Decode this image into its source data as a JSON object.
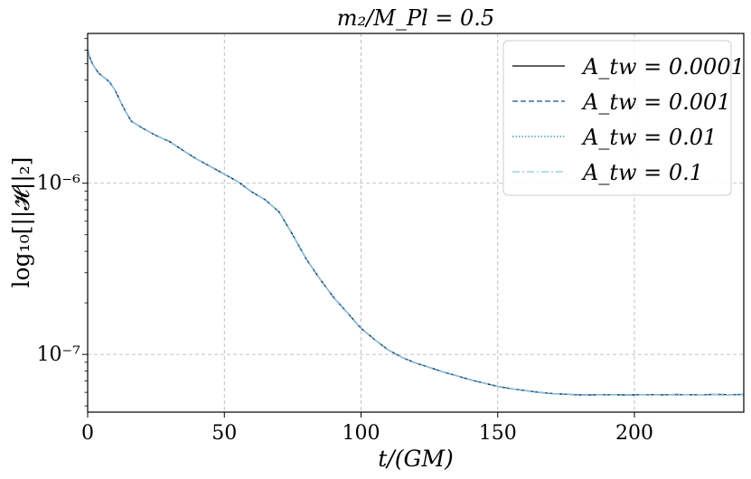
{
  "chart_data": {
    "type": "line",
    "title": "m₂/M_Pl = 0.5",
    "xlabel": "t/(GM)",
    "ylabel": "log₁₀[||𝓗||₂]",
    "xlim": [
      0,
      240
    ],
    "ylim": [
      4.6e-08,
      7.5e-06
    ],
    "yscale": "log",
    "grid": true,
    "legend_position": "top-right",
    "x_ticks": [
      0,
      50,
      100,
      150,
      200
    ],
    "x_tick_labels": [
      "0",
      "50",
      "100",
      "150",
      "200"
    ],
    "y_ticks": [
      1e-07,
      1e-06
    ],
    "y_tick_labels": [
      "10⁻⁷",
      "10⁻⁶"
    ],
    "x": [
      0,
      1,
      2,
      4,
      6,
      8,
      10,
      12,
      14,
      16,
      18,
      20,
      25,
      30,
      35,
      40,
      45,
      50,
      55,
      60,
      65,
      70,
      75,
      80,
      85,
      90,
      95,
      100,
      105,
      110,
      115,
      120,
      125,
      130,
      135,
      140,
      145,
      150,
      155,
      160,
      165,
      170,
      175,
      180,
      185,
      190,
      195,
      200,
      205,
      210,
      215,
      220,
      225,
      230,
      235,
      240
    ],
    "series": [
      {
        "name": "A_tw = 0.0001",
        "color": "#000000",
        "dash": "solid",
        "values": [
          6e-06,
          5.3e-06,
          4.9e-06,
          4.4e-06,
          4.15e-06,
          3.9e-06,
          3.5e-06,
          3e-06,
          2.6e-06,
          2.3e-06,
          2.2e-06,
          2.1e-06,
          1.9e-06,
          1.75e-06,
          1.55e-06,
          1.38e-06,
          1.25e-06,
          1.13e-06,
          1.02e-06,
          8.9e-07,
          8e-07,
          6.8e-07,
          5e-07,
          3.6e-07,
          2.75e-07,
          2.15e-07,
          1.75e-07,
          1.42e-07,
          1.22e-07,
          1.06e-07,
          9.6e-08,
          8.9e-08,
          8.4e-08,
          7.9e-08,
          7.5e-08,
          7.1e-08,
          6.8e-08,
          6.5e-08,
          6.3e-08,
          6.15e-08,
          6e-08,
          5.9e-08,
          5.85e-08,
          5.8e-08,
          5.8e-08,
          5.82e-08,
          5.8e-08,
          5.8e-08,
          5.82e-08,
          5.8e-08,
          5.83e-08,
          5.81e-08,
          5.82e-08,
          5.83e-08,
          5.82e-08,
          5.83e-08
        ]
      },
      {
        "name": "A_tw = 0.001",
        "color": "#1f4e96",
        "dash": "dashed",
        "values": [
          6e-06,
          5.3e-06,
          4.9e-06,
          4.4e-06,
          4.15e-06,
          3.9e-06,
          3.5e-06,
          3e-06,
          2.6e-06,
          2.3e-06,
          2.2e-06,
          2.1e-06,
          1.9e-06,
          1.75e-06,
          1.55e-06,
          1.38e-06,
          1.25e-06,
          1.13e-06,
          1.02e-06,
          8.9e-07,
          8e-07,
          6.8e-07,
          5e-07,
          3.6e-07,
          2.75e-07,
          2.15e-07,
          1.75e-07,
          1.42e-07,
          1.22e-07,
          1.06e-07,
          9.6e-08,
          8.9e-08,
          8.4e-08,
          7.9e-08,
          7.5e-08,
          7.1e-08,
          6.8e-08,
          6.5e-08,
          6.3e-08,
          6.15e-08,
          6e-08,
          5.9e-08,
          5.85e-08,
          5.8e-08,
          5.8e-08,
          5.82e-08,
          5.8e-08,
          5.8e-08,
          5.82e-08,
          5.8e-08,
          5.83e-08,
          5.81e-08,
          5.82e-08,
          5.83e-08,
          5.82e-08,
          5.83e-08
        ]
      },
      {
        "name": "A_tw = 0.01",
        "color": "#1f88b8",
        "dash": "dotted",
        "values": [
          6e-06,
          5.3e-06,
          4.9e-06,
          4.4e-06,
          4.15e-06,
          3.9e-06,
          3.5e-06,
          3e-06,
          2.6e-06,
          2.3e-06,
          2.2e-06,
          2.1e-06,
          1.9e-06,
          1.75e-06,
          1.55e-06,
          1.38e-06,
          1.25e-06,
          1.13e-06,
          1.02e-06,
          8.9e-07,
          8e-07,
          6.8e-07,
          5e-07,
          3.6e-07,
          2.75e-07,
          2.15e-07,
          1.75e-07,
          1.42e-07,
          1.22e-07,
          1.06e-07,
          9.6e-08,
          8.9e-08,
          8.4e-08,
          7.9e-08,
          7.5e-08,
          7.1e-08,
          6.8e-08,
          6.5e-08,
          6.3e-08,
          6.15e-08,
          6e-08,
          5.9e-08,
          5.85e-08,
          5.8e-08,
          5.8e-08,
          5.82e-08,
          5.8e-08,
          5.8e-08,
          5.82e-08,
          5.8e-08,
          5.83e-08,
          5.81e-08,
          5.82e-08,
          5.83e-08,
          5.82e-08,
          5.83e-08
        ]
      },
      {
        "name": "A_tw = 0.1",
        "color": "#8ec3e6",
        "dash": "dashdot",
        "values": [
          6e-06,
          5.3e-06,
          4.9e-06,
          4.4e-06,
          4.15e-06,
          3.9e-06,
          3.5e-06,
          3e-06,
          2.6e-06,
          2.3e-06,
          2.2e-06,
          2.1e-06,
          1.9e-06,
          1.75e-06,
          1.55e-06,
          1.38e-06,
          1.25e-06,
          1.13e-06,
          1.02e-06,
          8.9e-07,
          8e-07,
          6.8e-07,
          5e-07,
          3.6e-07,
          2.75e-07,
          2.15e-07,
          1.75e-07,
          1.42e-07,
          1.22e-07,
          1.06e-07,
          9.6e-08,
          8.9e-08,
          8.4e-08,
          7.9e-08,
          7.5e-08,
          7.1e-08,
          6.8e-08,
          6.5e-08,
          6.3e-08,
          6.15e-08,
          6e-08,
          5.9e-08,
          5.85e-08,
          5.8e-08,
          5.8e-08,
          5.82e-08,
          5.8e-08,
          5.8e-08,
          5.82e-08,
          5.8e-08,
          5.83e-08,
          5.81e-08,
          5.82e-08,
          5.83e-08,
          5.82e-08,
          5.83e-08
        ]
      }
    ]
  }
}
